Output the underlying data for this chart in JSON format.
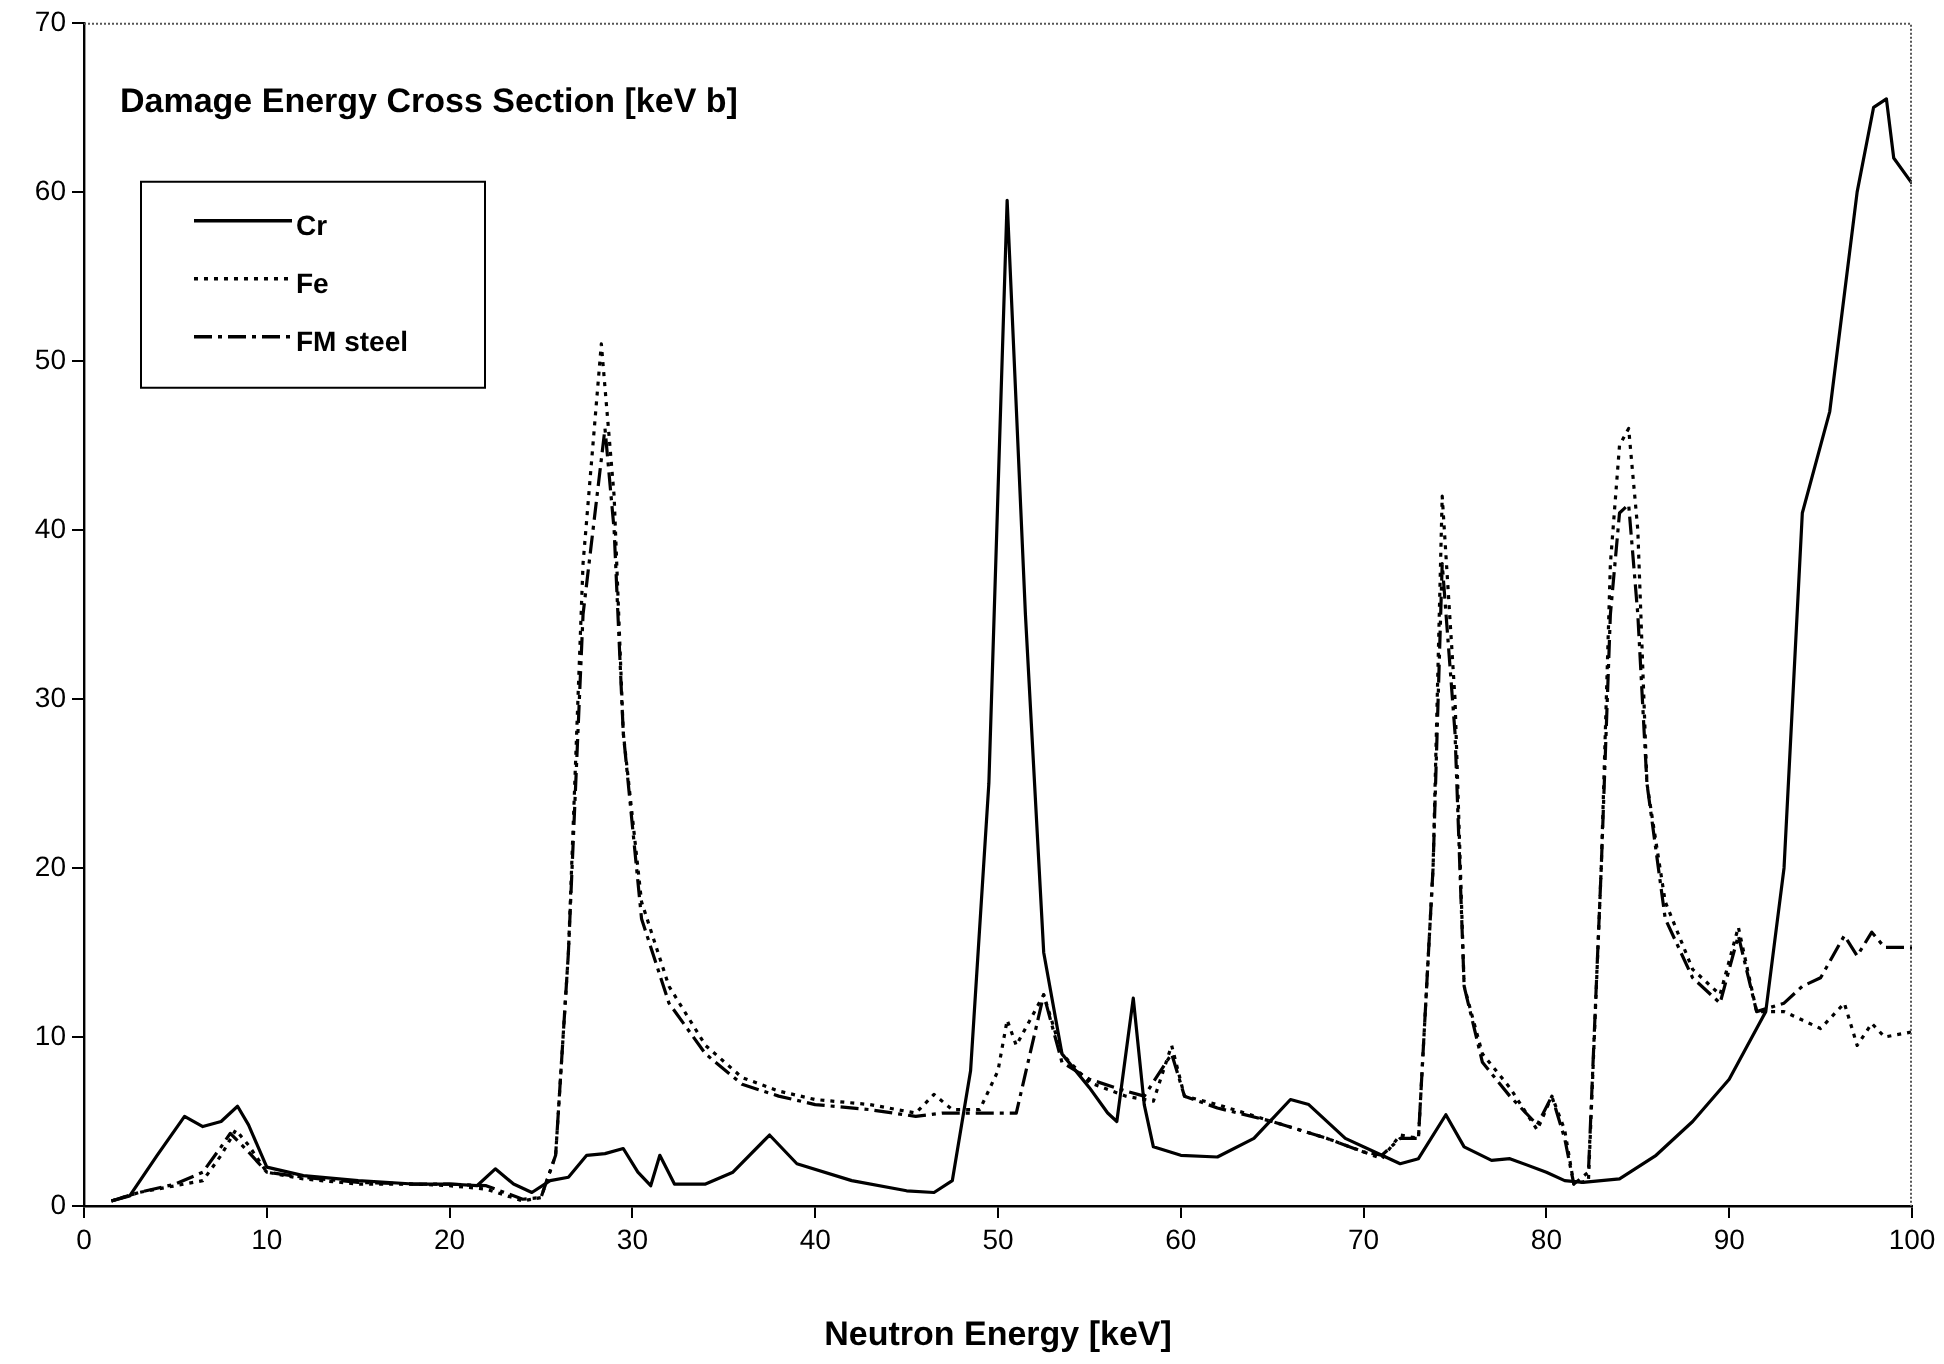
{
  "chart_data": {
    "type": "line",
    "title": "Damage Energy Cross Section [keV b]",
    "xlabel": "Neutron Energy [keV]",
    "xlim": [
      0,
      100
    ],
    "xticks": [
      0,
      10,
      20,
      30,
      40,
      50,
      60,
      70,
      80,
      90,
      100
    ],
    "ylim": [
      0,
      70
    ],
    "yticks": [
      0,
      10,
      20,
      30,
      40,
      50,
      60,
      70
    ],
    "grid": false,
    "legend": "top left",
    "marker": "none",
    "series": [
      {
        "name": "Cr",
        "color": "#000000",
        "line_style": "solid",
        "x": [
          1.5,
          2.5,
          4,
          5.5,
          6.5,
          7.5,
          8.4,
          9,
          10,
          12,
          15,
          18,
          20,
          21.5,
          22.5,
          23.5,
          24.5,
          25.5,
          26.5,
          27.5,
          28.5,
          29.5,
          30.3,
          31,
          31.5,
          32.3,
          34,
          35.5,
          37.5,
          39,
          42,
          45,
          46.5,
          47.5,
          48.5,
          49.5,
          50.5,
          51.5,
          52.5,
          53.5,
          55,
          56,
          56.5,
          57.4,
          58,
          58.5,
          60,
          62,
          64,
          66,
          67,
          69,
          71,
          72,
          73,
          74.5,
          75.5,
          77,
          78,
          80,
          81,
          82,
          84,
          86,
          88,
          90,
          92,
          93,
          94,
          95.5,
          97,
          97.9,
          98.6,
          99,
          100
        ],
        "values": [
          0.3,
          0.6,
          3,
          5.3,
          4.7,
          5,
          5.9,
          4.8,
          2.3,
          1.8,
          1.5,
          1.3,
          1.3,
          1.2,
          2.2,
          1.3,
          0.8,
          1.5,
          1.7,
          3,
          3.1,
          3.4,
          2,
          1.2,
          3,
          1.3,
          1.3,
          2,
          4.2,
          2.5,
          1.5,
          0.9,
          0.8,
          1.5,
          8,
          25,
          59.5,
          35,
          15,
          9,
          7,
          5.5,
          5,
          12.3,
          6,
          3.5,
          3,
          2.9,
          4,
          6.3,
          6,
          4,
          3,
          2.5,
          2.8,
          5.4,
          3.5,
          2.7,
          2.8,
          2,
          1.5,
          1.4,
          1.6,
          3,
          5,
          7.5,
          11.5,
          20,
          41,
          47,
          60,
          65,
          65.5,
          62,
          60.5
        ]
      },
      {
        "name": "Fe",
        "color": "#000000",
        "line_style": "dotted",
        "x": [
          1.5,
          3,
          5,
          6.5,
          7.5,
          8.3,
          9,
          10,
          12,
          15,
          18,
          20,
          22,
          24,
          25,
          25.8,
          26.5,
          27.3,
          28.3,
          29,
          29.5,
          30.5,
          32,
          34,
          36,
          38,
          40,
          43,
          45.5,
          46.5,
          47.5,
          49,
          50,
          50.5,
          51,
          51.5,
          52.5,
          53.5,
          55,
          57,
          58.5,
          59.5,
          60.2,
          62,
          65,
          68,
          70,
          71,
          72,
          73,
          73.8,
          74.3,
          75,
          75.5,
          76.5,
          78,
          79.5,
          80.3,
          81,
          81.5,
          82.3,
          83,
          83.5,
          84,
          84.5,
          85,
          85.5,
          86.5,
          88,
          89.5,
          90.5,
          91.5,
          93,
          94,
          95,
          96.3,
          97,
          97.8,
          98.5,
          100
        ],
        "values": [
          0.3,
          0.8,
          1.2,
          1.5,
          3,
          4.5,
          3.6,
          2,
          1.6,
          1.3,
          1.3,
          1.2,
          1,
          0.3,
          0.5,
          3,
          15,
          38,
          51,
          42,
          28,
          18,
          13,
          9.5,
          7.6,
          6.8,
          6.3,
          6,
          5.5,
          6.6,
          5.7,
          5.7,
          8,
          11,
          9.5,
          10.5,
          12.5,
          9,
          7.3,
          6.5,
          6.2,
          9.5,
          6.5,
          6,
          5,
          4,
          3.2,
          2.8,
          4.2,
          4,
          20,
          42,
          30,
          13,
          9,
          7,
          4.5,
          6.5,
          4.5,
          1.3,
          1.5,
          20,
          38,
          45,
          46,
          40,
          25,
          18,
          14,
          12.5,
          16.5,
          11.5,
          11.5,
          11,
          10.5,
          12,
          9.5,
          10.8,
          10,
          10.3
        ]
      },
      {
        "name": "FM steel",
        "color": "#000000",
        "line_style": "dashdot",
        "x": [
          1.5,
          3,
          5,
          6.5,
          7.5,
          8,
          9,
          10,
          12,
          15,
          18,
          20,
          22,
          24,
          25,
          25.8,
          26.5,
          27.3,
          28.5,
          29,
          29.5,
          30.5,
          32,
          34,
          36,
          38,
          40,
          43,
          45.5,
          47,
          49,
          51,
          52.5,
          53.5,
          55,
          57,
          58,
          59.5,
          60.2,
          62,
          65,
          68,
          70,
          71,
          72,
          73,
          73.8,
          74.3,
          75,
          75.5,
          76.5,
          78,
          79.5,
          80.3,
          81,
          81.5,
          82.3,
          83,
          83.5,
          84,
          84.5,
          85,
          85.5,
          86.5,
          88,
          89.5,
          90.5,
          91.5,
          93,
          94,
          95,
          96.3,
          97,
          97.8,
          98.5,
          100
        ],
        "values": [
          0.3,
          0.8,
          1.3,
          2,
          3.5,
          4.3,
          3.2,
          2,
          1.7,
          1.4,
          1.3,
          1.3,
          1.2,
          0.4,
          0.5,
          3,
          15,
          35,
          46,
          40,
          28,
          17,
          12,
          9,
          7.2,
          6.5,
          6,
          5.7,
          5.3,
          5.5,
          5.5,
          5.5,
          12.5,
          8.5,
          7.5,
          6.8,
          6.5,
          9,
          6.5,
          5.8,
          5,
          4,
          3.2,
          3,
          4,
          4,
          20,
          38,
          28,
          13,
          8.5,
          6.5,
          4.8,
          6.5,
          4,
          1.3,
          2,
          20,
          35,
          41,
          41.5,
          35,
          25,
          17,
          13.5,
          12,
          16,
          11.5,
          12,
          13,
          13.5,
          16,
          14.8,
          16.2,
          15.3,
          15.3
        ]
      }
    ]
  }
}
